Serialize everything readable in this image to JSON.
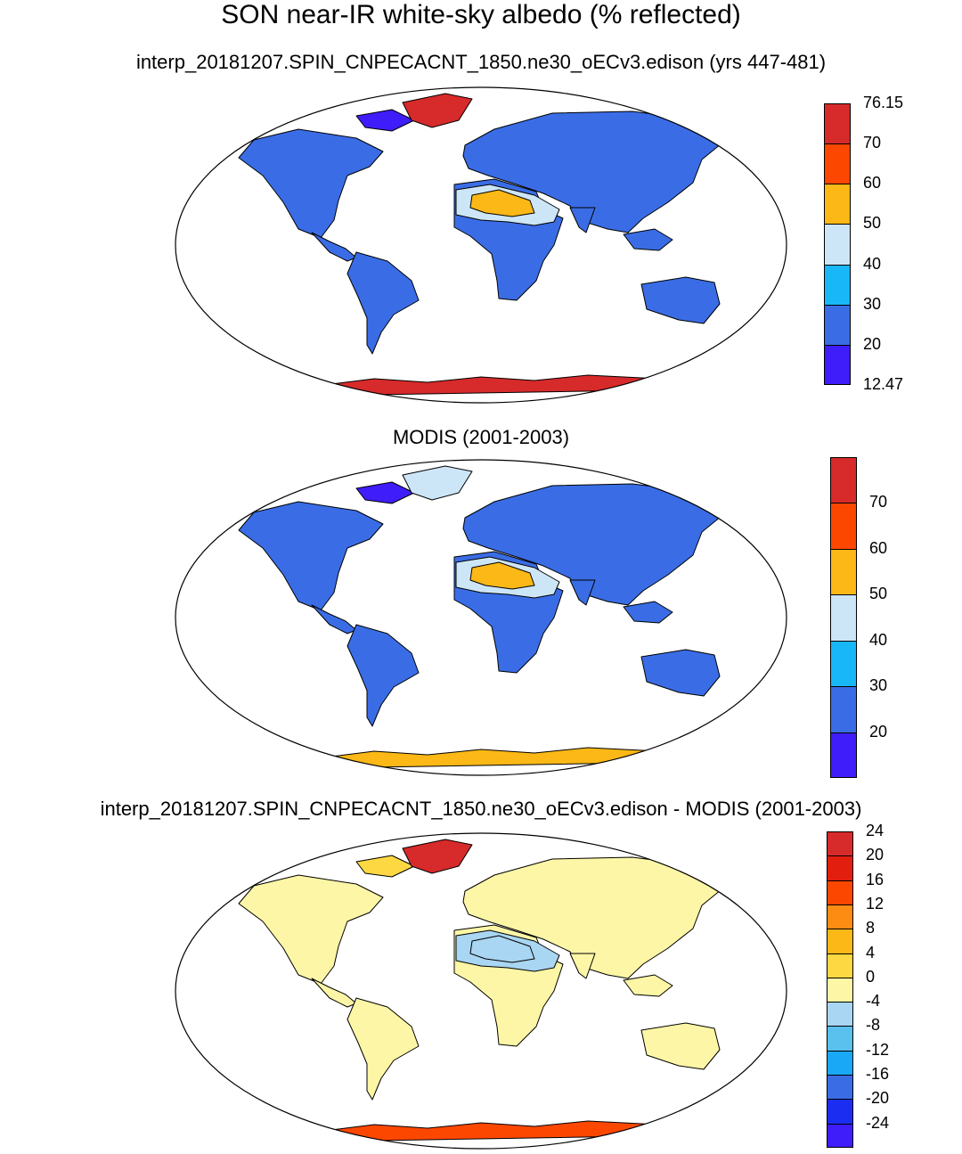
{
  "figure": {
    "title": "SON near-IR white-sky albedo (% reflected)"
  },
  "panels": [
    {
      "subtitle": "interp_20181207.SPIN_CNPECACNT_1850.ne30_oECv3.edison (yrs 447-481)",
      "colorbar": {
        "colors": [
          "#3f1dfa",
          "#3a6de5",
          "#18b7f7",
          "#cde6f7",
          "#fbb816",
          "#fc4700",
          "#d72a2a"
        ],
        "labels": [
          "12.47",
          "20",
          "30",
          "40",
          "50",
          "60",
          "70",
          "76.15"
        ]
      },
      "regions": {
        "ocean": "#ffffff",
        "land": "#3a6de5",
        "highlat": "#3f1dfa",
        "desert_edge": "#cde6f7",
        "desert": "#fbb816",
        "antarctica": "#d72a2a",
        "greenland": "#d72a2a"
      }
    },
    {
      "subtitle": "MODIS (2001-2003)",
      "colorbar": {
        "colors": [
          "#3f1dfa",
          "#3a6de5",
          "#18b7f7",
          "#cde6f7",
          "#fbb816",
          "#fc4700",
          "#d72a2a"
        ],
        "labels": [
          "20",
          "30",
          "40",
          "50",
          "60",
          "70"
        ]
      },
      "regions": {
        "ocean": "#ffffff",
        "land": "#3a6de5",
        "highlat": "#3f1dfa",
        "desert_edge": "#cde6f7",
        "desert": "#fbb816",
        "antarctica": "#fbb816",
        "greenland": "#cde6f7"
      }
    },
    {
      "subtitle": "interp_20181207.SPIN_CNPECACNT_1850.ne30_oECv3.edison - MODIS (2001-2003)",
      "colorbar": {
        "colors": [
          "#3f1dfa",
          "#1a2df0",
          "#3a6de5",
          "#18a8f5",
          "#5ac0ee",
          "#a9d6f2",
          "#fdf6a6",
          "#fdd843",
          "#fbb816",
          "#fc8c12",
          "#fc4700",
          "#e21f0f",
          "#d72a2a"
        ],
        "labels": [
          "-24",
          "-20",
          "-16",
          "-12",
          "-8",
          "-4",
          "0",
          "4",
          "8",
          "12",
          "16",
          "20",
          "24"
        ]
      },
      "regions": {
        "ocean": "#ffffff",
        "land": "#fdf6a6",
        "highlat": "#fdd843",
        "desert_edge": "#a9d6f2",
        "desert": "#a9d6f2",
        "antarctica": "#fc4700",
        "greenland": "#d72a2a"
      }
    }
  ]
}
